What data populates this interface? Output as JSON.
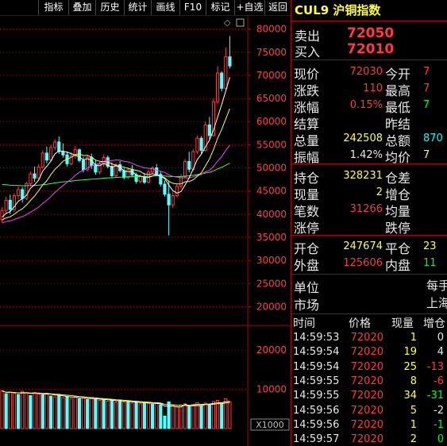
{
  "toolbar": {
    "items": [
      "指标",
      "叠加",
      "历史",
      "统计",
      "画线",
      "F10",
      "标记",
      "+自选",
      "返回"
    ]
  },
  "chart": {
    "price_axis": [
      "80000",
      "75000",
      "70000",
      "65000",
      "60000",
      "55000",
      "50000",
      "45000",
      "40000",
      "35000",
      "30000",
      "25000",
      "20000"
    ],
    "volume_axis": [
      "20000",
      "10000"
    ],
    "volume_unit": "X1000",
    "colors": {
      "up": "#ff3a3a",
      "down": "#54ffff",
      "ma5": "#ffffff",
      "ma10": "#ffff40",
      "ma20": "#ff40ff",
      "ma60": "#40ff40",
      "grid": "#b00000"
    }
  },
  "chart_data": {
    "type": "candlestick",
    "title": "",
    "ylim": [
      17500,
      82000
    ],
    "candles": [
      [
        38800,
        41500,
        38200,
        40800
      ],
      [
        40800,
        43800,
        40200,
        43000
      ],
      [
        43000,
        44200,
        40000,
        41000
      ],
      [
        41000,
        44500,
        40500,
        44000
      ],
      [
        44000,
        46000,
        43200,
        45300
      ],
      [
        45300,
        45800,
        42500,
        43400
      ],
      [
        43400,
        47000,
        43000,
        46600
      ],
      [
        46600,
        49200,
        46000,
        48700
      ],
      [
        48700,
        50300,
        47000,
        47800
      ],
      [
        47800,
        50800,
        47200,
        50200
      ],
      [
        50200,
        53800,
        49800,
        53200
      ],
      [
        53200,
        54600,
        51000,
        51700
      ],
      [
        51700,
        55000,
        51200,
        54400
      ],
      [
        54400,
        56200,
        53800,
        55600
      ],
      [
        55600,
        56800,
        53000,
        53500
      ],
      [
        53500,
        55300,
        52200,
        52800
      ],
      [
        52800,
        53500,
        50300,
        50900
      ],
      [
        50900,
        53400,
        50500,
        52600
      ],
      [
        52600,
        54700,
        52000,
        53900
      ],
      [
        53900,
        54200,
        51200,
        51600
      ],
      [
        51600,
        52400,
        49000,
        49600
      ],
      [
        49600,
        52800,
        49200,
        52300
      ],
      [
        52300,
        53100,
        49800,
        50500
      ],
      [
        50500,
        51700,
        48500,
        49100
      ],
      [
        49100,
        51400,
        48600,
        50800
      ],
      [
        50800,
        52900,
        50200,
        52200
      ],
      [
        52200,
        52700,
        49900,
        50300
      ],
      [
        50300,
        51200,
        47800,
        48300
      ],
      [
        48300,
        51100,
        48000,
        50700
      ],
      [
        50700,
        51500,
        49000,
        49400
      ],
      [
        49400,
        49900,
        47500,
        47900
      ],
      [
        47900,
        50100,
        47600,
        49600
      ],
      [
        49600,
        50600,
        48100,
        48500
      ],
      [
        48500,
        49000,
        46600,
        47100
      ],
      [
        47100,
        48600,
        46700,
        48100
      ],
      [
        48100,
        48900,
        46500,
        46900
      ],
      [
        46900,
        49600,
        46600,
        49100
      ],
      [
        49100,
        50400,
        48600,
        50000
      ],
      [
        50000,
        50800,
        48200,
        48600
      ],
      [
        48600,
        49200,
        46000,
        46500
      ],
      [
        46500,
        47300,
        43800,
        44300
      ],
      [
        44300,
        47100,
        35400,
        42000
      ],
      [
        42000,
        44800,
        41300,
        44000
      ],
      [
        44000,
        46500,
        43600,
        46000
      ],
      [
        46000,
        48700,
        45500,
        48100
      ],
      [
        48100,
        51900,
        47800,
        51400
      ],
      [
        51400,
        53500,
        49000,
        49700
      ],
      [
        49700,
        54100,
        49300,
        53500
      ],
      [
        53500,
        57000,
        53000,
        56400
      ],
      [
        56400,
        56900,
        53100,
        53800
      ],
      [
        53800,
        60000,
        53500,
        59300
      ],
      [
        59300,
        61000,
        56200,
        57000
      ],
      [
        57000,
        65000,
        56700,
        64300
      ],
      [
        64300,
        72000,
        63800,
        70500
      ],
      [
        70500,
        70900,
        66500,
        67200
      ],
      [
        67200,
        76000,
        66900,
        74000
      ],
      [
        74000,
        78500,
        71500,
        72030
      ]
    ],
    "volume": [
      [
        9600,
        1
      ],
      [
        8900,
        0
      ],
      [
        9300,
        1
      ],
      [
        9000,
        1
      ],
      [
        8700,
        0
      ],
      [
        9500,
        1
      ],
      [
        9100,
        1
      ],
      [
        8400,
        0
      ],
      [
        9200,
        1
      ],
      [
        8800,
        1
      ],
      [
        8600,
        0
      ],
      [
        9000,
        1
      ],
      [
        8300,
        0
      ],
      [
        8100,
        1
      ],
      [
        8500,
        0
      ],
      [
        7900,
        1
      ],
      [
        8200,
        0
      ],
      [
        7700,
        1
      ],
      [
        8000,
        1
      ],
      [
        7600,
        0
      ],
      [
        7800,
        1
      ],
      [
        7400,
        0
      ],
      [
        7700,
        1
      ],
      [
        7500,
        0
      ],
      [
        7200,
        1
      ],
      [
        7400,
        0
      ],
      [
        7000,
        1
      ],
      [
        7200,
        0
      ],
      [
        6800,
        1
      ],
      [
        7100,
        0
      ],
      [
        6700,
        1
      ],
      [
        6900,
        0
      ],
      [
        6500,
        1
      ],
      [
        6800,
        0
      ],
      [
        6300,
        1
      ],
      [
        6600,
        0
      ],
      [
        6400,
        1
      ],
      [
        6200,
        0
      ],
      [
        6500,
        1
      ],
      [
        6100,
        0
      ],
      [
        3200,
        0
      ],
      [
        6800,
        0
      ],
      [
        5900,
        1
      ],
      [
        5600,
        1
      ],
      [
        6000,
        1
      ],
      [
        6300,
        1
      ],
      [
        5800,
        0
      ],
      [
        6200,
        1
      ],
      [
        6600,
        1
      ],
      [
        5900,
        0
      ],
      [
        6500,
        1
      ],
      [
        6100,
        0
      ],
      [
        6900,
        1
      ],
      [
        7200,
        1
      ],
      [
        6300,
        0
      ],
      [
        7600,
        1
      ],
      [
        6800,
        1
      ]
    ],
    "vol_ylim": [
      0,
      24500
    ]
  },
  "panel": {
    "title": "CUL9 沪铜指数",
    "sell_label": "卖出",
    "sell_price": "72050",
    "buy_label": "买入",
    "buy_price": "72010",
    "rows1": [
      {
        "l1": "现价",
        "v1": "72030",
        "c1": "red",
        "l2": "今开",
        "v2": "7",
        "c2": "red"
      },
      {
        "l1": "涨跌",
        "v1": "110",
        "c1": "red",
        "l2": "最高",
        "v2": "7",
        "c2": "red"
      },
      {
        "l1": "涨幅",
        "v1": "0.15%",
        "c1": "red",
        "l2": "最低",
        "v2": "7",
        "c2": "grn"
      },
      {
        "l1": "结算",
        "v1": "",
        "c1": "wht",
        "l2": "昨结",
        "v2": "",
        "c2": "wht"
      },
      {
        "l1": "总量",
        "v1": "242508",
        "c1": "yel",
        "l2": "总额",
        "v2": "870",
        "c2": "cyan"
      },
      {
        "l1": "振幅",
        "v1": "1.42%",
        "c1": "wht",
        "l2": "均价",
        "v2": "7",
        "c2": "yel"
      }
    ],
    "rows2": [
      {
        "l1": "持仓",
        "v1": "328231",
        "c1": "yel",
        "l2": "仓差",
        "v2": "",
        "c2": "wht"
      },
      {
        "l1": "现量",
        "v1": "2",
        "c1": "yel",
        "l2": "增仓",
        "v2": "",
        "c2": "wht"
      },
      {
        "l1": "笔数",
        "v1": "31266",
        "c1": "red",
        "l2": "均量",
        "v2": "",
        "c2": "wht"
      },
      {
        "l1": "涨停",
        "v1": "",
        "c1": "wht",
        "l2": "跌停",
        "v2": "",
        "c2": "wht"
      }
    ],
    "rows3": [
      {
        "l1": "开仓",
        "v1": "247674",
        "c1": "yel",
        "l2": "平仓",
        "v2": "23",
        "c2": "yel"
      },
      {
        "l1": "外盘",
        "v1": "125606",
        "c1": "red",
        "l2": "内盘",
        "v2": "11",
        "c2": "grn"
      }
    ],
    "rows4": [
      {
        "l1": "单位",
        "v2": "每手"
      },
      {
        "l1": "市场",
        "v2": "上海"
      }
    ],
    "ticks_header": [
      "时间",
      "价格",
      "现量",
      "增仓"
    ],
    "ticks": [
      {
        "time": "14:59:53",
        "price": "72020",
        "vol": "1",
        "chg": "0",
        "cc": "wht"
      },
      {
        "time": "14:59:54",
        "price": "72020",
        "vol": "19",
        "chg": "4",
        "cc": "wht"
      },
      {
        "time": "14:59:54",
        "price": "72020",
        "vol": "25",
        "chg": "-13",
        "cc": "red"
      },
      {
        "time": "14:59:55",
        "price": "72020",
        "vol": "8",
        "chg": "-6",
        "cc": "red"
      },
      {
        "time": "14:59:55",
        "price": "72020",
        "vol": "34",
        "chg": "-31",
        "cc": "grn"
      },
      {
        "time": "14:59:56",
        "price": "72020",
        "vol": "5",
        "chg": "-2",
        "cc": "wht"
      },
      {
        "time": "14:59:56",
        "price": "72020",
        "vol": "1",
        "chg": "-1",
        "cc": "grn"
      },
      {
        "time": "14:59:57",
        "price": "72020",
        "vol": "2",
        "chg": "0",
        "cc": "grn"
      }
    ]
  }
}
